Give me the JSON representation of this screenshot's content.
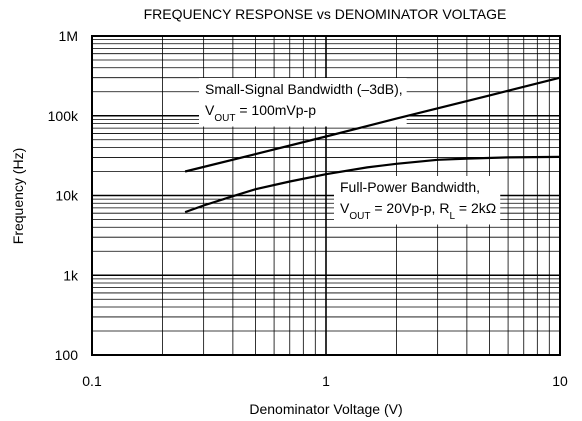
{
  "chart_data": {
    "type": "line",
    "title": "FREQUENCY RESPONSE vs DENOMINATOR VOLTAGE",
    "x_label": "Denominator Voltage (V)",
    "y_label": "Frequency (Hz)",
    "x_log": true,
    "y_log": true,
    "grid": true,
    "minor_grid": true,
    "xlim": [
      0.1,
      10
    ],
    "xticks": [
      0.1,
      1,
      10
    ],
    "ylim": [
      100,
      1000000
    ],
    "yticks": [
      {
        "value": 100,
        "label": "100"
      },
      {
        "value": 1000,
        "label": "1k"
      },
      {
        "value": 10000,
        "label": "10k"
      },
      {
        "value": 100000,
        "label": "100k"
      },
      {
        "value": 1000000,
        "label": "1M"
      }
    ],
    "series": [
      {
        "name": "Small-Signal Bandwidth",
        "color": "#000000",
        "x": [
          0.25,
          0.5,
          1,
          2,
          5,
          10
        ],
        "values": [
          20000,
          33000,
          55000,
          92000,
          180000,
          300000
        ]
      },
      {
        "name": "Full-Power Bandwidth",
        "color": "#000000",
        "x": [
          0.25,
          0.3,
          0.4,
          0.5,
          0.7,
          1,
          1.5,
          2,
          3,
          4,
          6,
          10
        ],
        "values": [
          6200,
          7500,
          9800,
          12000,
          15000,
          18500,
          22500,
          25000,
          28000,
          29000,
          30000,
          30500
        ]
      }
    ],
    "annotations": [
      {
        "lines": [
          [
            {
              "text": "Small-Signal Bandwidth (–3dB),"
            }
          ],
          [
            {
              "text": "V"
            },
            {
              "text": "OUT",
              "sub": true
            },
            {
              "text": " = 100mVp-p"
            }
          ]
        ]
      },
      {
        "lines": [
          [
            {
              "text": "Full-Power Bandwidth,"
            }
          ],
          [
            {
              "text": "V"
            },
            {
              "text": "OUT",
              "sub": true
            },
            {
              "text": " = 20Vp-p, R"
            },
            {
              "text": "L",
              "sub": true
            },
            {
              "text": " = 2kΩ"
            }
          ]
        ]
      }
    ]
  }
}
